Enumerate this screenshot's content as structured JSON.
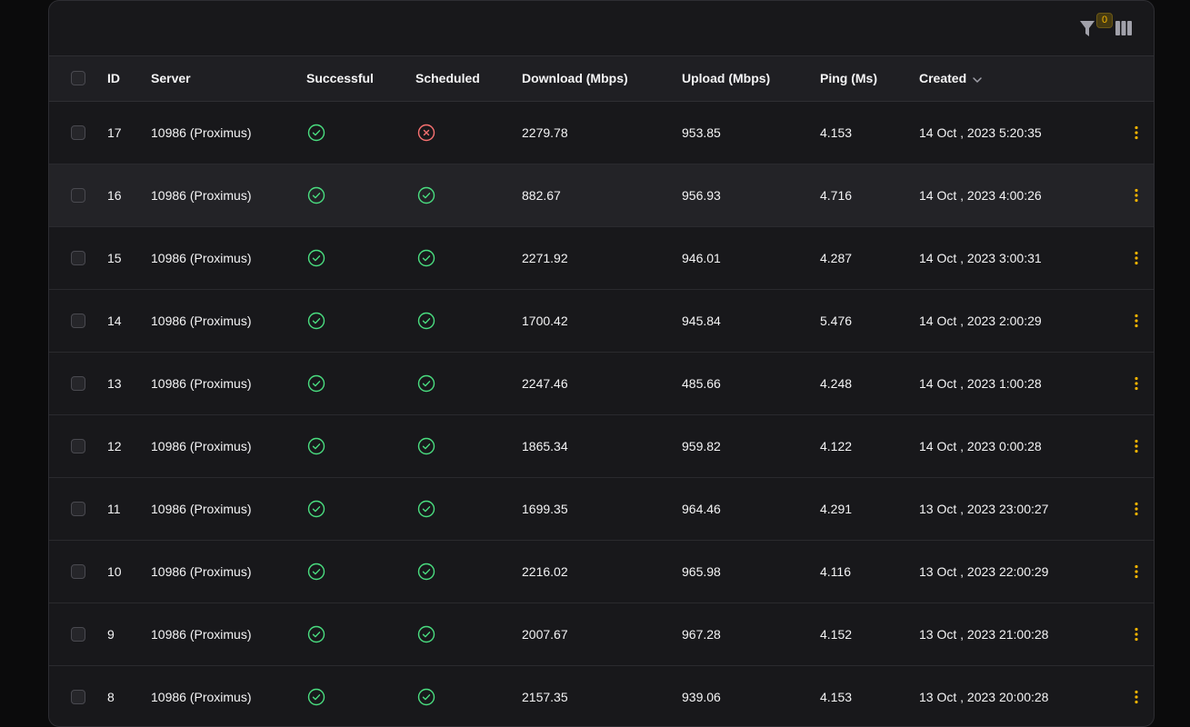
{
  "toolbar": {
    "filter_icon": "filter-icon",
    "filter_count": "0",
    "columns_icon": "columns-icon"
  },
  "columns": {
    "id": "ID",
    "server": "Server",
    "successful": "Successful",
    "scheduled": "Scheduled",
    "download": "Download (Mbps)",
    "upload": "Upload (Mbps)",
    "ping": "Ping (Ms)",
    "created": "Created"
  },
  "colors": {
    "success": "#4ade80",
    "failure": "#f87171",
    "accent": "#f5b400"
  },
  "rows": [
    {
      "id": "17",
      "server": "10986 (Proximus)",
      "successful": true,
      "scheduled": false,
      "download": "2279.78",
      "upload": "953.85",
      "ping": "4.153",
      "created": "14 Oct , 2023 5:20:35"
    },
    {
      "id": "16",
      "server": "10986 (Proximus)",
      "successful": true,
      "scheduled": true,
      "download": "882.67",
      "upload": "956.93",
      "ping": "4.716",
      "created": "14 Oct , 2023 4:00:26"
    },
    {
      "id": "15",
      "server": "10986 (Proximus)",
      "successful": true,
      "scheduled": true,
      "download": "2271.92",
      "upload": "946.01",
      "ping": "4.287",
      "created": "14 Oct , 2023 3:00:31"
    },
    {
      "id": "14",
      "server": "10986 (Proximus)",
      "successful": true,
      "scheduled": true,
      "download": "1700.42",
      "upload": "945.84",
      "ping": "5.476",
      "created": "14 Oct , 2023 2:00:29"
    },
    {
      "id": "13",
      "server": "10986 (Proximus)",
      "successful": true,
      "scheduled": true,
      "download": "2247.46",
      "upload": "485.66",
      "ping": "4.248",
      "created": "14 Oct , 2023 1:00:28"
    },
    {
      "id": "12",
      "server": "10986 (Proximus)",
      "successful": true,
      "scheduled": true,
      "download": "1865.34",
      "upload": "959.82",
      "ping": "4.122",
      "created": "14 Oct , 2023 0:00:28"
    },
    {
      "id": "11",
      "server": "10986 (Proximus)",
      "successful": true,
      "scheduled": true,
      "download": "1699.35",
      "upload": "964.46",
      "ping": "4.291",
      "created": "13 Oct , 2023 23:00:27"
    },
    {
      "id": "10",
      "server": "10986 (Proximus)",
      "successful": true,
      "scheduled": true,
      "download": "2216.02",
      "upload": "965.98",
      "ping": "4.116",
      "created": "13 Oct , 2023 22:00:29"
    },
    {
      "id": "9",
      "server": "10986 (Proximus)",
      "successful": true,
      "scheduled": true,
      "download": "2007.67",
      "upload": "967.28",
      "ping": "4.152",
      "created": "13 Oct , 2023 21:00:28"
    },
    {
      "id": "8",
      "server": "10986 (Proximus)",
      "successful": true,
      "scheduled": true,
      "download": "2157.35",
      "upload": "939.06",
      "ping": "4.153",
      "created": "13 Oct , 2023 20:00:28"
    }
  ]
}
